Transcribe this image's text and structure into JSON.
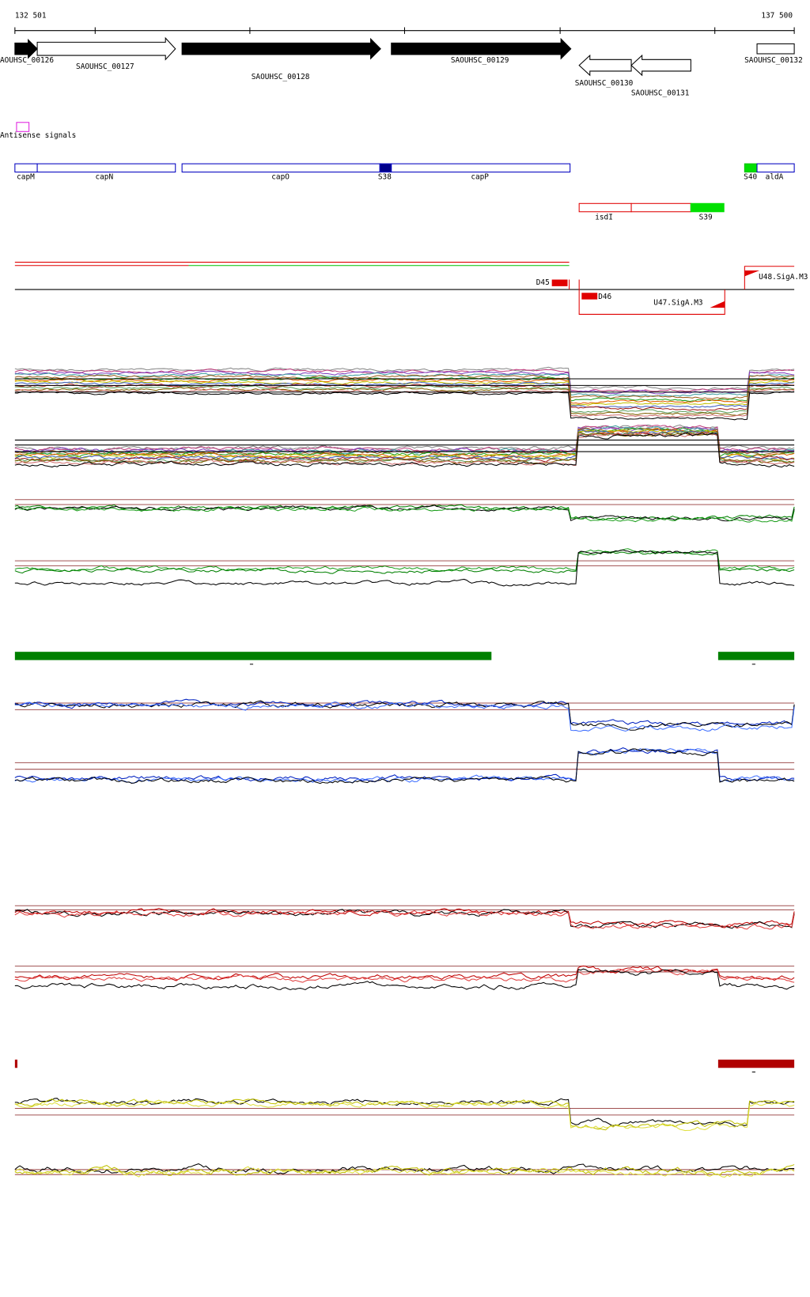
{
  "header": {
    "start_label": "132 501",
    "end_label": "137 500"
  },
  "genes": [
    {
      "label": "AOUHSC_00126"
    },
    {
      "label": "SAOUHSC_00127"
    },
    {
      "label": "SAOUHSC_00128"
    },
    {
      "label": "SAOUHSC_00129"
    },
    {
      "label": "SAOUHSC_00130"
    },
    {
      "label": "SAOUHSC_00131"
    },
    {
      "label": "SAOUHSC_00132"
    }
  ],
  "antisense": {
    "label": "Antisense signals"
  },
  "features": [
    {
      "label": "capM"
    },
    {
      "label": "capN"
    },
    {
      "label": "capO"
    },
    {
      "label": "S38"
    },
    {
      "label": "capP"
    },
    {
      "label": "S40"
    },
    {
      "label": "aldA"
    },
    {
      "label": "isdI"
    },
    {
      "label": "S39"
    }
  ],
  "signals": [
    {
      "label": "D45"
    },
    {
      "label": "D46"
    },
    {
      "label": "U47.SigA.M3"
    },
    {
      "label": "U48.SigA.M3"
    }
  ]
}
